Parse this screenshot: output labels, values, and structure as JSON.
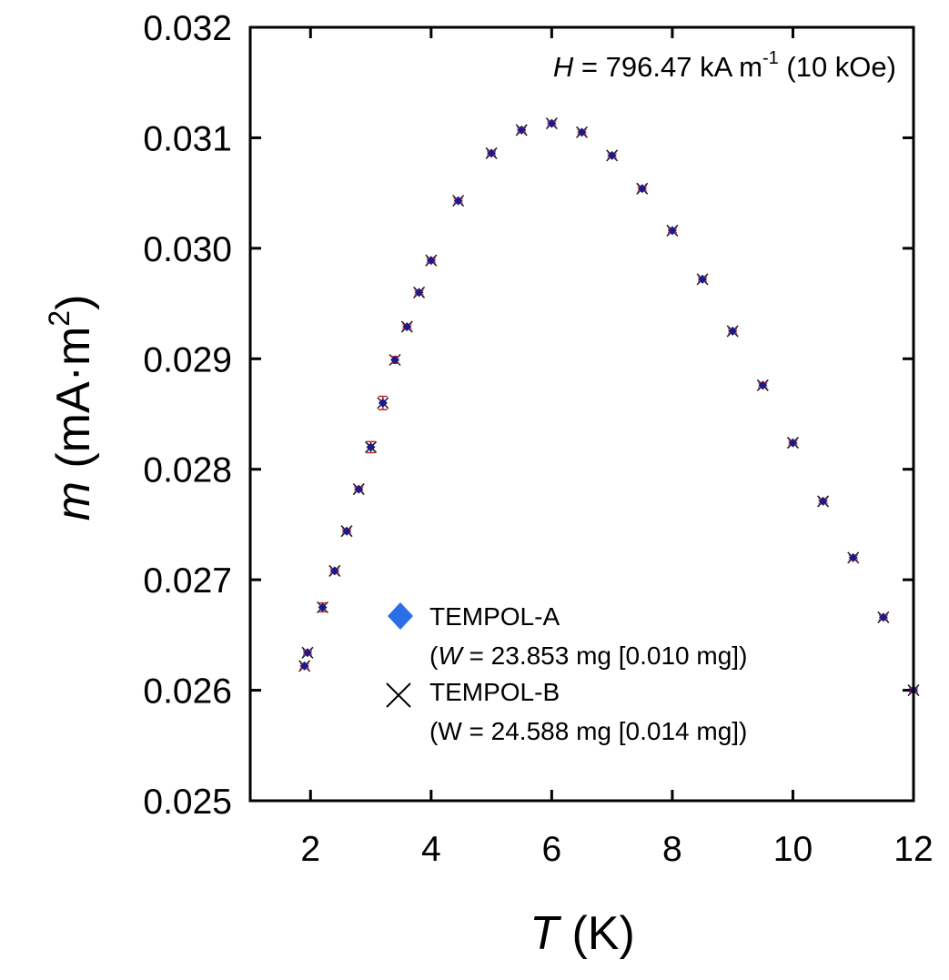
{
  "chart_data": {
    "type": "scatter",
    "title": "",
    "annotation": {
      "var": "H",
      "text": " = 796.47 kA m",
      "sup": "-1",
      "tail": " (10 kOe)"
    },
    "xlabel": {
      "var": "T",
      "unit": " (K)"
    },
    "ylabel": {
      "var": "m",
      "unit_pre": " (mA·m",
      "sup": "2",
      "unit_post": ")"
    },
    "xlim": [
      1,
      12
    ],
    "ylim": [
      0.025,
      0.032
    ],
    "xticks": [
      2,
      4,
      6,
      8,
      10,
      12
    ],
    "xtick_labels": [
      "2",
      "4",
      "6",
      "8",
      "10",
      "12"
    ],
    "yticks": [
      0.025,
      0.026,
      0.027,
      0.028,
      0.029,
      0.03,
      0.031,
      0.032
    ],
    "ytick_labels": [
      "0.025",
      "0.026",
      "0.027",
      "0.028",
      "0.029",
      "0.030",
      "0.031",
      "0.032"
    ],
    "grid": false,
    "legend_position": "bottom-center",
    "colors": {
      "series_a": "#2b6fe8",
      "series_a_dark": "#1a1a8c",
      "series_b": "#000000",
      "error_bar": "#c0282c"
    },
    "series": [
      {
        "name": "TEMPOL-A",
        "sublabel": {
          "pre": "(",
          "var": "W",
          "post": " = 23.853 mg [0.010 mg])"
        },
        "marker": "diamond",
        "x": [
          1.9,
          1.95,
          2.2,
          2.4,
          2.6,
          2.8,
          3.0,
          3.2,
          3.4,
          3.6,
          3.8,
          4.0,
          4.45,
          5.0,
          5.5,
          6.0,
          6.5,
          7.0,
          7.5,
          8.0,
          8.5,
          9.0,
          9.5,
          10.0,
          10.5,
          11.0,
          11.5,
          12.0
        ],
        "y": [
          0.02622,
          0.02634,
          0.02675,
          0.02708,
          0.02744,
          0.02782,
          0.0282,
          0.0286,
          0.02899,
          0.02929,
          0.0296,
          0.02989,
          0.03043,
          0.03086,
          0.03107,
          0.03113,
          0.03105,
          0.03084,
          0.03054,
          0.03016,
          0.02972,
          0.02925,
          0.02876,
          0.02824,
          0.02771,
          0.0272,
          0.02666,
          0.026
        ],
        "y_err": [
          2e-05,
          2e-05,
          4e-05,
          2e-05,
          2e-05,
          2e-05,
          5e-05,
          6e-05,
          3e-05,
          2e-05,
          2e-05,
          2e-05,
          2e-05,
          2e-05,
          2e-05,
          2e-05,
          2e-05,
          2e-05,
          2e-05,
          2e-05,
          2e-05,
          2e-05,
          2e-05,
          2e-05,
          2e-05,
          2e-05,
          2e-05,
          2e-05
        ]
      },
      {
        "name": "TEMPOL-B",
        "sublabel": {
          "pre": "",
          "var": "",
          "post": "(W = 24.588 mg [0.014 mg])"
        },
        "marker": "x",
        "x": [
          1.9,
          1.95,
          2.2,
          2.4,
          2.6,
          2.8,
          3.0,
          3.2,
          3.4,
          3.6,
          3.8,
          4.0,
          4.45,
          5.0,
          5.5,
          6.0,
          6.5,
          7.0,
          7.5,
          8.0,
          8.5,
          9.0,
          9.5,
          10.0,
          10.5,
          11.0,
          11.5,
          12.0
        ],
        "y": [
          0.02622,
          0.02634,
          0.02675,
          0.02708,
          0.02744,
          0.02782,
          0.0282,
          0.0286,
          0.02899,
          0.02929,
          0.0296,
          0.02989,
          0.03043,
          0.03086,
          0.03107,
          0.03113,
          0.03105,
          0.03084,
          0.03054,
          0.03016,
          0.02972,
          0.02925,
          0.02876,
          0.02824,
          0.02771,
          0.0272,
          0.02666,
          0.026
        ]
      }
    ]
  }
}
